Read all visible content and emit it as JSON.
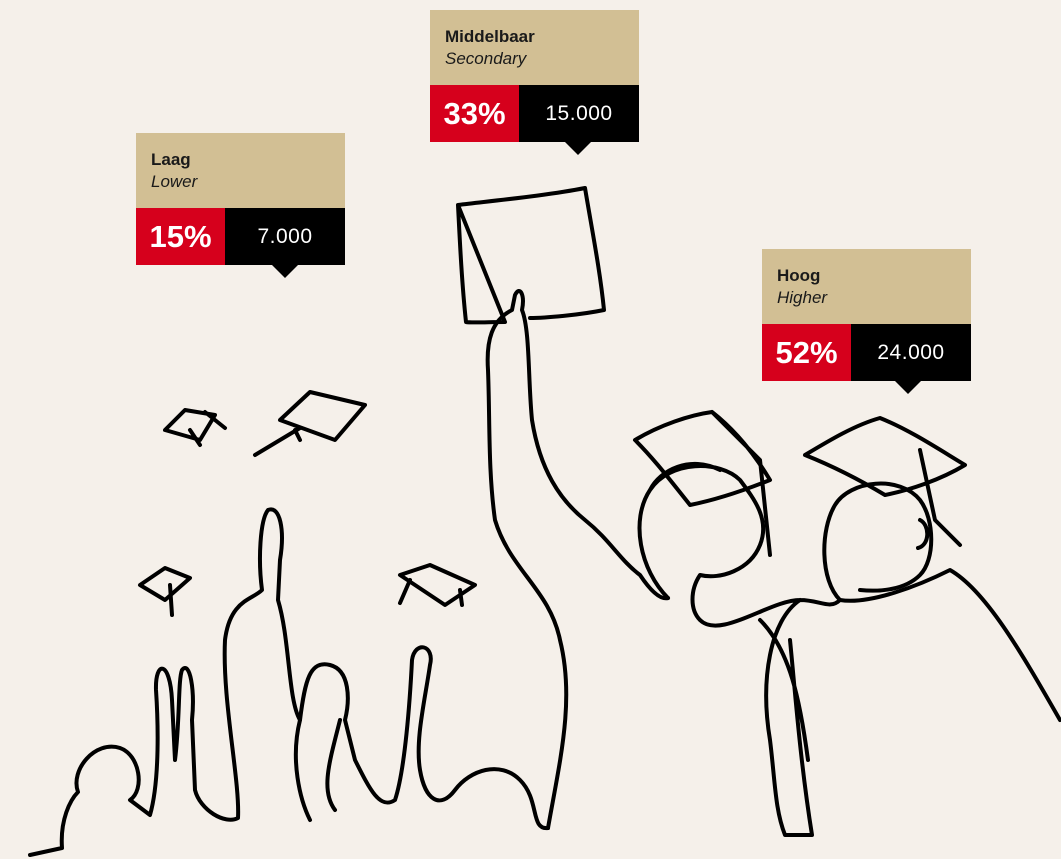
{
  "callouts": [
    {
      "label": "Laag",
      "sublabel": "Lower",
      "percent": "15%",
      "count": "7.000"
    },
    {
      "label": "Middelbaar",
      "sublabel": "Secondary",
      "percent": "33%",
      "count": "15.000"
    },
    {
      "label": "Hoog",
      "sublabel": "Higher",
      "percent": "52%",
      "count": "24.000"
    }
  ]
}
